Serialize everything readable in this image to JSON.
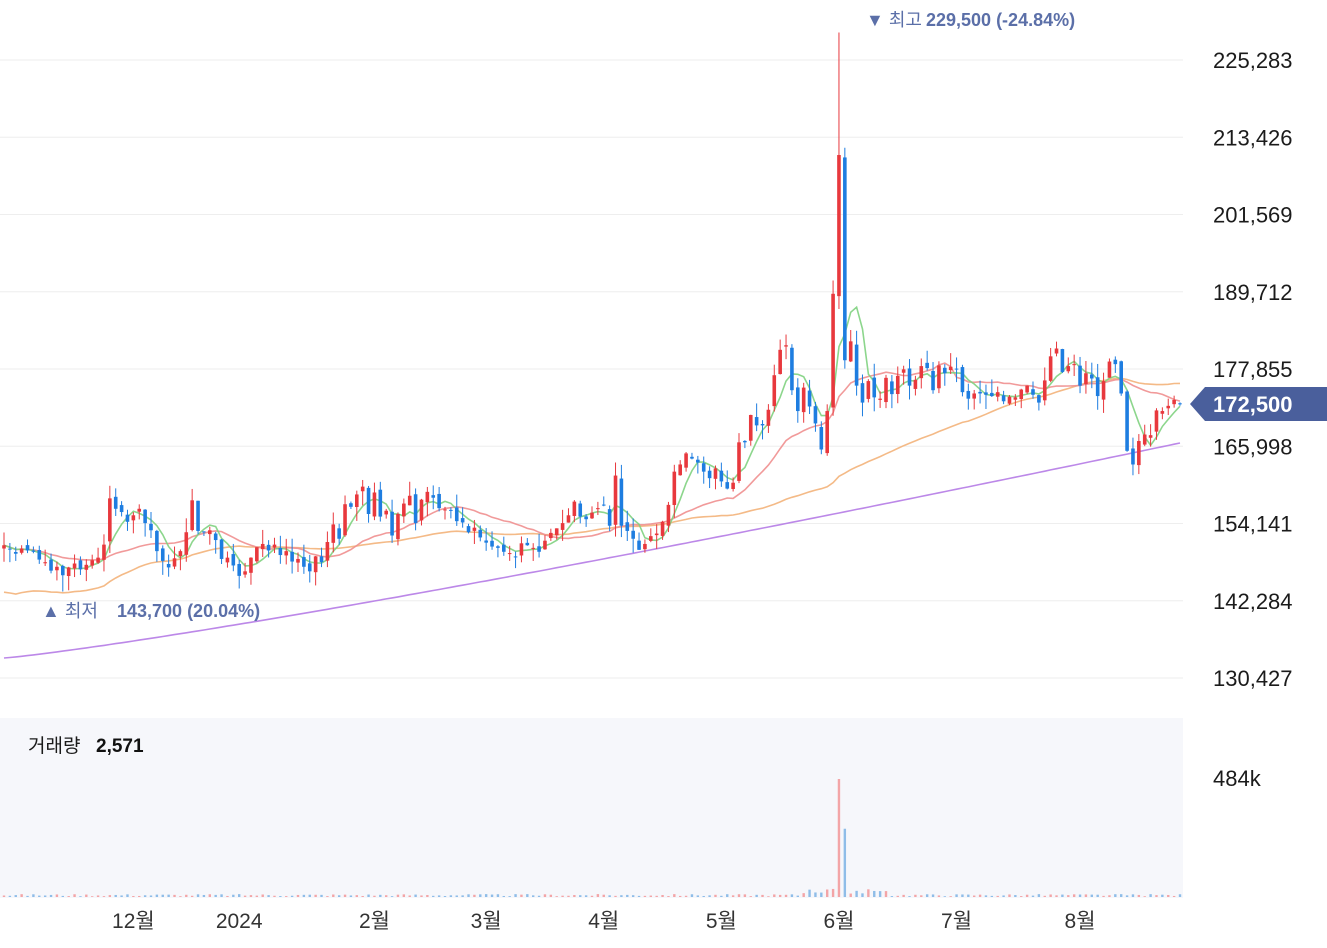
{
  "chart_data": {
    "type": "candlestick",
    "price_axis": {
      "ticks": [
        "225,283",
        "213,426",
        "201,569",
        "189,712",
        "177,855",
        "165,998",
        "154,141",
        "142,284",
        "130,427"
      ],
      "tick_values": [
        225283,
        213426,
        201569,
        189712,
        177855,
        165998,
        154141,
        142284,
        130427
      ],
      "range": [
        124500,
        230200
      ]
    },
    "current_price": {
      "label": "172,500",
      "value": 172500,
      "color": "#4a5f9c"
    },
    "high_marker": {
      "prefix": "▼ 최고",
      "label": "229,500 (-24.84%)",
      "value": 229500
    },
    "low_marker": {
      "prefix": "▲ 최저",
      "label": "143,700 (20.04%)",
      "value": 143700
    },
    "x_axis": {
      "labels": [
        "12월",
        "2024",
        "2월",
        "3월",
        "4월",
        "5월",
        "6월",
        "7월",
        "8월"
      ]
    },
    "volume": {
      "title": "거래량",
      "value": "2,571",
      "tick": "484k",
      "tick_value": 484000,
      "spike_values": [
        484000,
        280000
      ]
    },
    "colors": {
      "up": "#e8383d",
      "down": "#1e7de0",
      "ma5": "#7fd17f",
      "ma20": "#f08f8f",
      "ma60": "#f3b27a",
      "ma120": "#b57be6"
    },
    "closes": [
      150800,
      150200,
      149500,
      150300,
      150000,
      149800,
      148600,
      148200,
      146900,
      147500,
      146200,
      147400,
      148000,
      147100,
      147800,
      148500,
      148900,
      150900,
      158000,
      156400,
      155900,
      154400,
      155400,
      156400,
      154200,
      153100,
      149900,
      148400,
      147400,
      148800,
      149900,
      152800,
      157700,
      153000,
      152900,
      153100,
      151600,
      148700,
      148900,
      147700,
      146100,
      146800,
      148900,
      150500,
      151000,
      150000,
      150900,
      149300,
      149900,
      148300,
      148700,
      147500,
      146800,
      149100,
      148200,
      151300,
      154000,
      151800,
      157100,
      156700,
      158600,
      159800,
      155600,
      158900,
      155200,
      156100,
      152300,
      155600,
      157200,
      158400,
      154200,
      157800,
      159000,
      158100,
      156500,
      156300,
      156200,
      154500,
      154300,
      152800,
      153500,
      152000,
      151200,
      150600,
      150400,
      149800,
      149600,
      149000,
      151100,
      150800,
      150400,
      149800,
      151500,
      152700,
      153400,
      154200,
      155400,
      157500,
      155200,
      154800,
      155800,
      156500,
      156900,
      153800,
      161500,
      153800,
      153000,
      151800,
      150100,
      151000,
      152200,
      152600,
      154400,
      157000,
      162100,
      163200,
      164900,
      164100,
      163500,
      162100,
      161100,
      162600,
      160600,
      159500,
      160400,
      166600,
      166600,
      170800,
      169200,
      169200,
      171600,
      176900,
      180800,
      181500,
      174600,
      171400,
      175000,
      172100,
      169500,
      165500,
      171400,
      189400,
      210700,
      179200,
      182100,
      175300,
      172700,
      176000,
      173500,
      173300,
      176500,
      174000,
      176800,
      177800,
      175300,
      176200,
      178300,
      178000,
      174600,
      178400,
      177200,
      178200,
      177900,
      174300,
      173300,
      174100,
      174100,
      173900,
      173700,
      174300,
      172900,
      173600,
      173500,
      174700,
      175300,
      173900,
      172700,
      176100,
      179800,
      181000,
      177400,
      178300,
      178600,
      175300,
      177200,
      176400,
      173700,
      176000,
      179000,
      178600,
      174100,
      165300,
      163200,
      166800,
      167800,
      167700,
      171500,
      171400,
      172200,
      173100,
      172500
    ]
  }
}
